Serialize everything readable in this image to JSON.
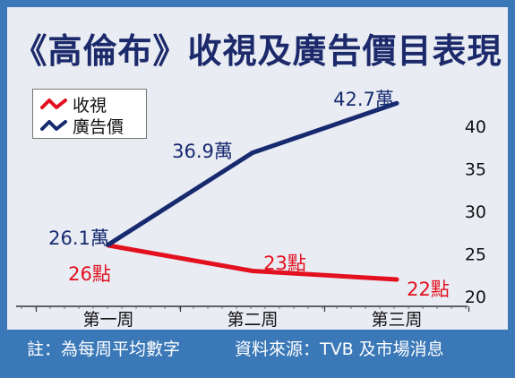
{
  "chart_data": {
    "type": "line",
    "title": "《高倫布》收視及廣告價目表現",
    "categories": [
      "第一周",
      "第二周",
      "第三周"
    ],
    "series": [
      {
        "name": "收視",
        "values": [
          26,
          23,
          22
        ],
        "labels": [
          "26點",
          "23點",
          "22點"
        ],
        "color": "#e3101f"
      },
      {
        "name": "廣告價",
        "values": [
          26.1,
          36.9,
          42.7
        ],
        "labels": [
          "26.1萬",
          "36.9萬",
          "42.7萬"
        ],
        "color": "#172a70"
      }
    ],
    "ylim": [
      20,
      45
    ],
    "yticks": [
      "20",
      "25",
      "30",
      "35",
      "40"
    ],
    "y_axis_side": "right",
    "grid": false,
    "legend_position": "top-left"
  },
  "legend": [
    {
      "label": "收視",
      "color": "#e3101f",
      "icon": "zigzag-line-icon"
    },
    {
      "label": "廣告價",
      "color": "#172a70",
      "icon": "zigzag-line-icon"
    }
  ],
  "footer": {
    "note": "註：為每周平均數字",
    "source": "資料來源：TVB 及市場消息"
  },
  "colors": {
    "frame": "#3a78b8",
    "plot_background": "#e9ecf3",
    "title": "#1c2a6b"
  }
}
